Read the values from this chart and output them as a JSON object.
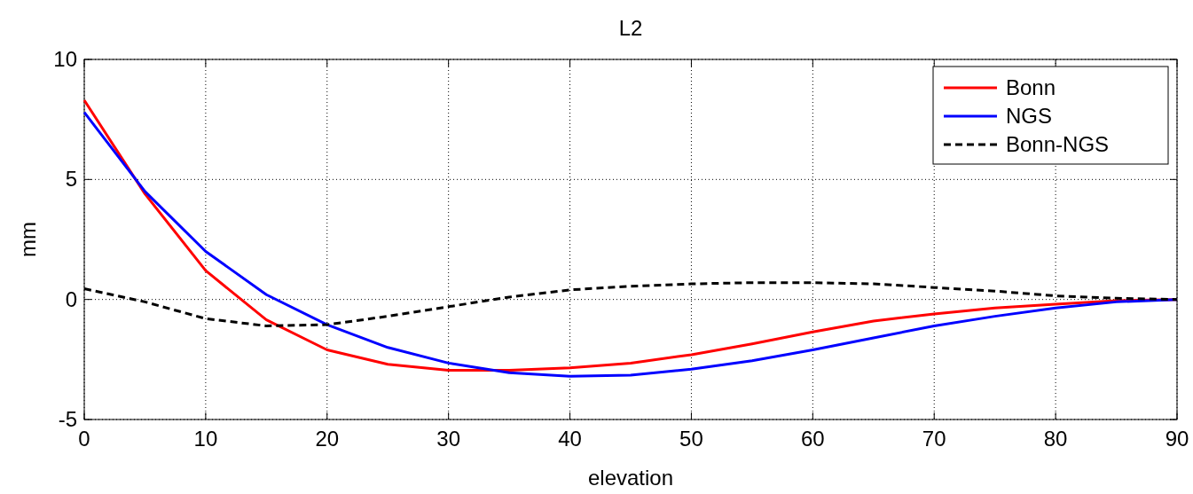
{
  "chart_data": {
    "type": "line",
    "title": "L2",
    "xlabel": "elevation",
    "ylabel": "mm",
    "x": [
      0,
      5,
      10,
      15,
      20,
      25,
      30,
      35,
      40,
      45,
      50,
      55,
      60,
      65,
      70,
      75,
      80,
      85,
      90
    ],
    "series": [
      {
        "name": "Bonn",
        "color": "#ff0000",
        "values": [
          8.3,
          4.4,
          1.2,
          -0.85,
          -2.1,
          -2.7,
          -2.95,
          -2.95,
          -2.85,
          -2.65,
          -2.3,
          -1.85,
          -1.35,
          -0.9,
          -0.6,
          -0.35,
          -0.2,
          -0.05,
          0
        ]
      },
      {
        "name": "NGS",
        "color": "#0000ff",
        "values": [
          7.8,
          4.5,
          2.0,
          0.2,
          -1.05,
          -2.0,
          -2.65,
          -3.05,
          -3.2,
          -3.15,
          -2.9,
          -2.55,
          -2.1,
          -1.6,
          -1.1,
          -0.7,
          -0.35,
          -0.1,
          0
        ]
      },
      {
        "name": "Bonn-NGS",
        "color": "#000000",
        "line_style": "dashed",
        "values": [
          0.45,
          -0.1,
          -0.8,
          -1.1,
          -1.05,
          -0.7,
          -0.3,
          0.1,
          0.4,
          0.55,
          0.65,
          0.7,
          0.7,
          0.65,
          0.5,
          0.35,
          0.15,
          0.05,
          0
        ]
      }
    ],
    "xlim": [
      0,
      90
    ],
    "xticks": [
      0,
      10,
      20,
      30,
      40,
      50,
      60,
      70,
      80,
      90
    ],
    "ylim": [
      -5,
      10
    ],
    "yticks": [
      -5,
      0,
      5,
      10
    ],
    "grid": true,
    "legend": "top right",
    "line_style": "solid",
    "marker": "none"
  }
}
